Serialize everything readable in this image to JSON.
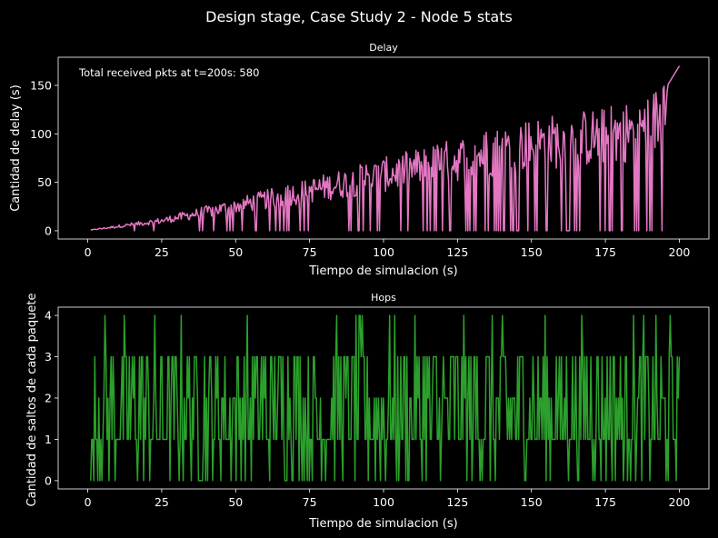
{
  "figure": {
    "suptitle": "Design stage, Case Study 2 - Node 5 stats",
    "background": "#000000"
  },
  "chart_data": [
    {
      "type": "line",
      "title": "Delay",
      "xlabel": "Tiempo de simulacion (s)",
      "ylabel": "Cantidad de delay (s)",
      "xlim": [
        -10,
        210
      ],
      "ylim": [
        -8.5,
        179
      ],
      "xticks": [
        0,
        25,
        50,
        75,
        100,
        125,
        150,
        175,
        200
      ],
      "yticks": [
        0,
        50,
        100,
        150
      ],
      "annotation": "Total received pkts at t=200s: 580",
      "color": "#e377c2",
      "samples": 580,
      "t_range": [
        1,
        200
      ],
      "envelope": {
        "description": "delay grows roughly linearly with time; frequent drops to 0",
        "points": [
          [
            1,
            1
          ],
          [
            25,
            13
          ],
          [
            50,
            32
          ],
          [
            75,
            52
          ],
          [
            100,
            72
          ],
          [
            125,
            92
          ],
          [
            150,
            112
          ],
          [
            175,
            122
          ],
          [
            190,
            135
          ],
          [
            200,
            170
          ]
        ]
      },
      "final_values": [
        [
          195,
          100
        ],
        [
          196,
          150
        ],
        [
          197,
          155
        ],
        [
          198,
          160
        ],
        [
          199,
          165
        ],
        [
          200,
          170
        ]
      ],
      "grid": false
    },
    {
      "type": "line",
      "title": "Hops",
      "xlabel": "Tiempo de simulacion (s)",
      "ylabel": "Cantidad de saltos de cada paquete",
      "xlim": [
        -10,
        210
      ],
      "ylim": [
        -0.2,
        4.2
      ],
      "xticks": [
        0,
        25,
        50,
        75,
        100,
        125,
        150,
        175,
        200
      ],
      "yticks": [
        0,
        1,
        2,
        3,
        4
      ],
      "color": "#2ca02c",
      "samples": 580,
      "t_range": [
        1,
        200
      ],
      "value_set": [
        0,
        1,
        2,
        3,
        4
      ],
      "start_values": [
        [
          1,
          0
        ],
        [
          2,
          1
        ],
        [
          3,
          1
        ]
      ],
      "end_values": [
        [
          199,
          2
        ],
        [
          200,
          3
        ]
      ],
      "grid": false
    }
  ]
}
